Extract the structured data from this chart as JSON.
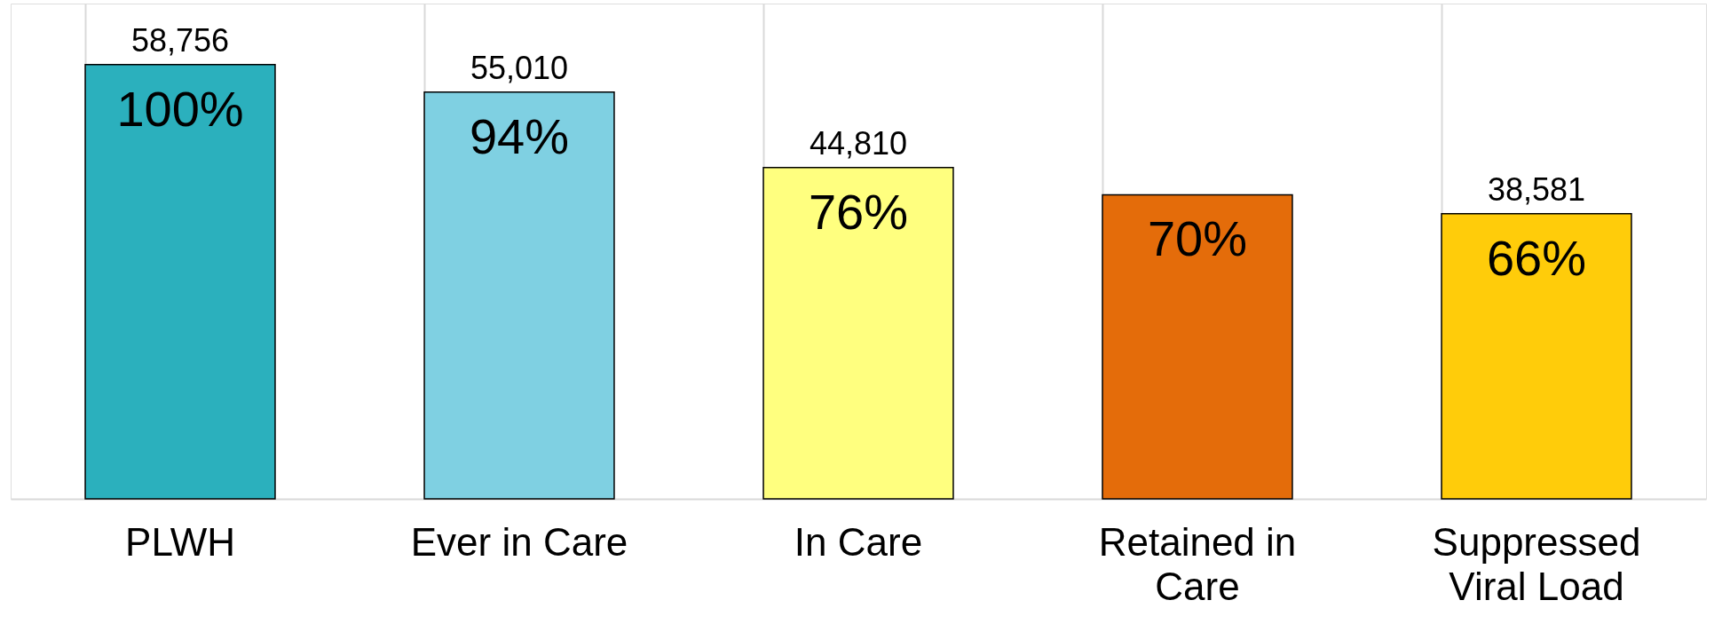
{
  "chart_data": {
    "type": "bar",
    "categories": [
      "PLWH",
      "Ever in Care",
      "In Care",
      "Retained in Care",
      "Suppressed Viral Load"
    ],
    "values": [
      58756,
      55010,
      44810,
      41129,
      38581
    ],
    "colors": [
      "#2bb0bd",
      "#7fd0e2",
      "#ffff7f",
      "#e46c0a",
      "#ffcc0a"
    ],
    "value_labels": [
      "58,756",
      "55,010",
      "44,810",
      null,
      "38,581"
    ],
    "annotations": [
      {
        "text": "100%",
        "x": "PLWH",
        "y": 58756
      },
      {
        "text": "94%",
        "x": "Ever in Care",
        "y": 55010
      },
      {
        "text": "76%",
        "x": "In Care",
        "y": 44810
      },
      {
        "text": "70%",
        "x": "Retained in Care",
        "y": 41129
      },
      {
        "text": "66%",
        "x": "Suppressed Viral Load",
        "y": 38581
      }
    ],
    "ylim": [
      0,
      67000
    ],
    "tick_labels": "x",
    "grid": "x"
  }
}
